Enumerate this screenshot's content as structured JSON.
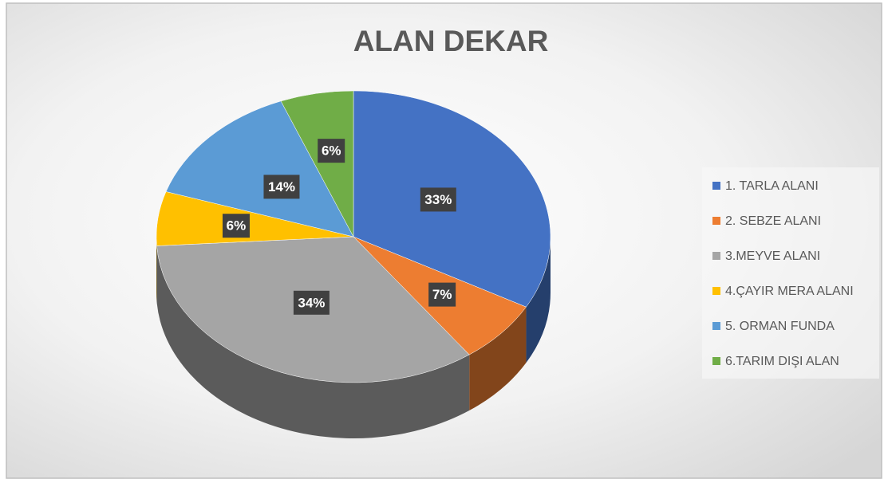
{
  "chart_data": {
    "type": "pie",
    "title": "ALAN DEKAR",
    "categories": [
      "1. TARLA ALANI",
      "2. SEBZE ALANI",
      "3.MEYVE ALANI",
      "4.ÇAYIR MERA ALANI",
      "5. ORMAN FUNDA",
      "6.TARIM DIŞI ALAN"
    ],
    "values": [
      33,
      7,
      34,
      6,
      14,
      6
    ],
    "value_labels": [
      "33%",
      "7%",
      "34%",
      "6%",
      "14%",
      "6%"
    ],
    "colors": [
      "#4472c4",
      "#ed7d31",
      "#a5a5a5",
      "#ffc000",
      "#5b9bd5",
      "#70ad47"
    ],
    "legend": "right"
  }
}
